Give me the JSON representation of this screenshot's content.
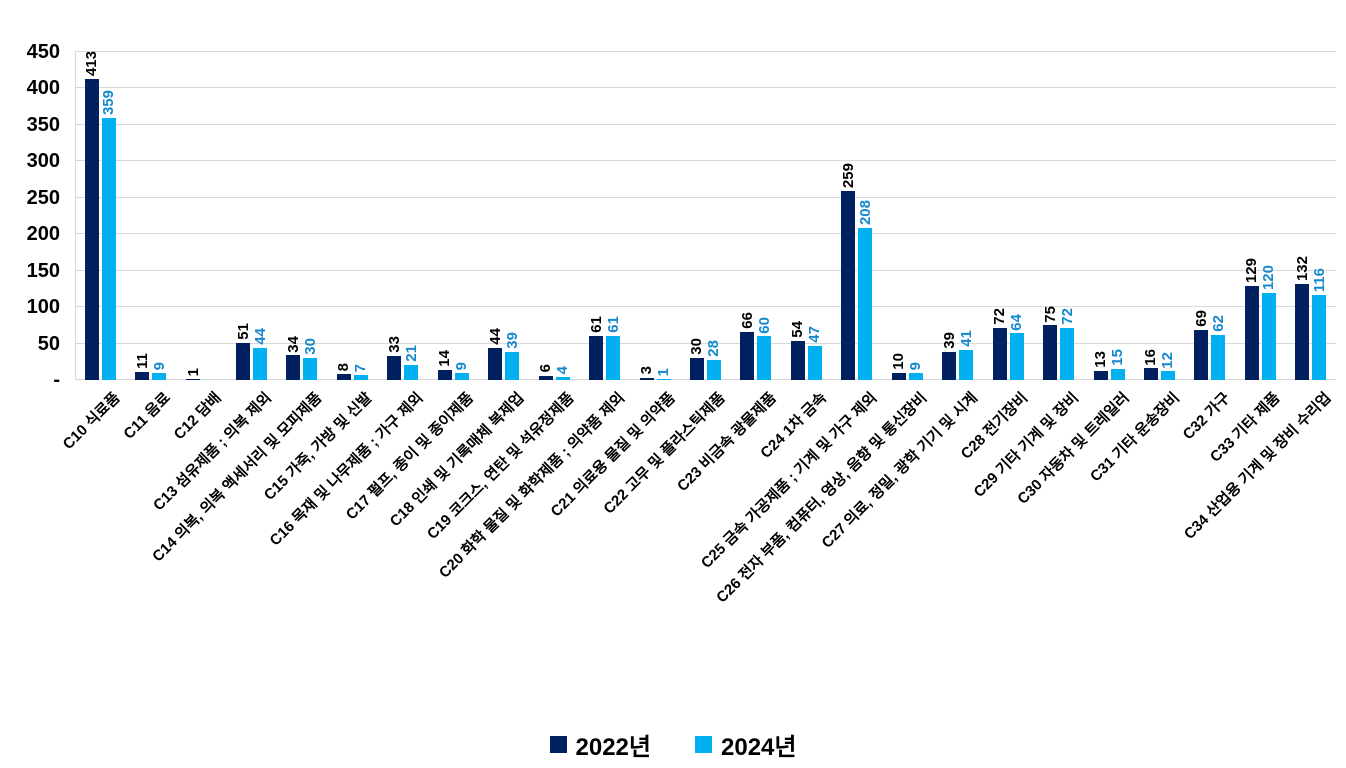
{
  "chart_data": {
    "type": "bar",
    "title": "",
    "xlabel": "",
    "ylabel": "",
    "ylim": [
      0,
      450
    ],
    "ytick_step": 50,
    "ytick_labels": [
      "-",
      "50",
      "100",
      "150",
      "200",
      "250",
      "300",
      "350",
      "400",
      "450"
    ],
    "grid": true,
    "legend_position": "bottom",
    "categories": [
      "C10 식료품",
      "C11 음료",
      "C12 담배",
      "C13 섬유제품 ; 의복 제외",
      "C14 의복, 의복 액세서리 및 모피제품",
      "C15 가죽, 가방 및 신발",
      "C16 목재 및 나무제품 ; 가구 제외",
      "C17 펄프, 종이 및 종이제품",
      "C18 인쇄 및 기록매체 복제업",
      "C19 코크스, 연탄 및 석유정제품",
      "C20 화학 물질 및 화학제품 ; 의약품 제외",
      "C21 의료용 물질 및 의약품",
      "C22 고무 및 플라스틱제품",
      "C23 비금속 광물제품",
      "C24 1차 금속",
      "C25 금속 가공제품 ; 기계 및 가구 제외",
      "C26 전자 부품, 컴퓨터, 영상, 음향 및 통신장비",
      "C27 의료, 정밀, 광학 기기 및 시계",
      "C28 전기장비",
      "C29 기타 기계 및 장비",
      "C30 자동차 및 트레일러",
      "C31 기타 운송장비",
      "C32 가구",
      "C33 기타 제품",
      "C34 산업용 기계 및 장비 수리업"
    ],
    "series": [
      {
        "name": "2022년",
        "color": "#002060",
        "label_color": "#000000",
        "values": [
          413,
          11,
          1,
          51,
          34,
          8,
          33,
          14,
          44,
          6,
          61,
          3,
          30,
          66,
          54,
          259,
          10,
          39,
          72,
          75,
          13,
          16,
          69,
          129,
          132
        ]
      },
      {
        "name": "2024년",
        "color": "#00b0f0",
        "label_color": "#1589cd",
        "values": [
          359,
          9,
          null,
          44,
          30,
          7,
          21,
          9,
          39,
          4,
          61,
          1,
          28,
          60,
          47,
          208,
          9,
          41,
          64,
          72,
          15,
          12,
          62,
          120,
          116
        ]
      }
    ]
  }
}
